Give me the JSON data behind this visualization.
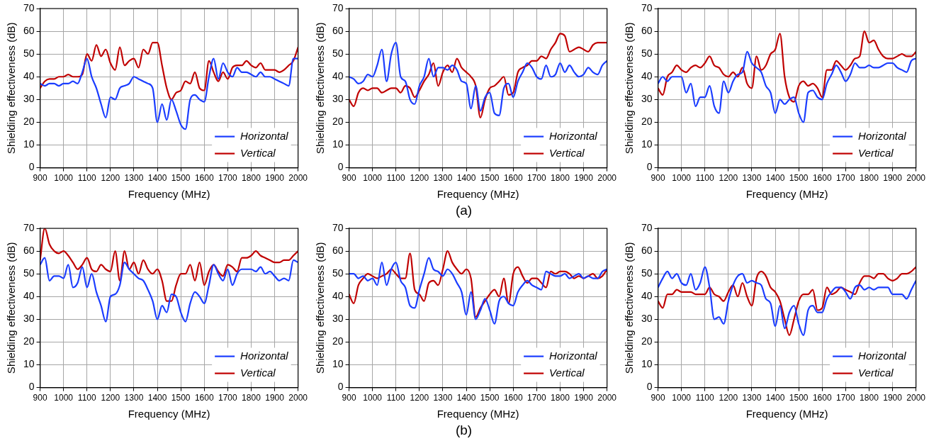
{
  "chart_data": [
    {
      "type": "line",
      "xlabel": "Frequency (MHz)",
      "ylabel": "Shielding effectiveness (dB)",
      "xlim": [
        900,
        2000
      ],
      "xticks": [
        900,
        1000,
        1100,
        1200,
        1300,
        1400,
        1500,
        1600,
        1700,
        1800,
        1900,
        2000
      ],
      "ylim": [
        0,
        70
      ],
      "yticks": [
        0,
        10,
        20,
        30,
        40,
        50,
        60,
        70
      ],
      "grid": true,
      "legend": "bottom right",
      "x": [
        900,
        920,
        940,
        960,
        980,
        1000,
        1020,
        1040,
        1060,
        1080,
        1100,
        1120,
        1140,
        1160,
        1180,
        1200,
        1220,
        1240,
        1260,
        1280,
        1300,
        1320,
        1340,
        1360,
        1380,
        1400,
        1420,
        1440,
        1460,
        1480,
        1500,
        1520,
        1540,
        1560,
        1580,
        1600,
        1620,
        1640,
        1660,
        1680,
        1700,
        1720,
        1740,
        1760,
        1780,
        1800,
        1820,
        1840,
        1860,
        1880,
        1900,
        1920,
        1940,
        1960,
        1980,
        2000
      ],
      "series": [
        {
          "name": "Horizontal",
          "color": "#1a3cff",
          "values": [
            37,
            36,
            37,
            37,
            36,
            37,
            37,
            38,
            37,
            42,
            48,
            40,
            35,
            28,
            22,
            31,
            30,
            35,
            36,
            37,
            40,
            39,
            38,
            37,
            35,
            20,
            28,
            21,
            30,
            25,
            19,
            17,
            30,
            32,
            30,
            29,
            40,
            48,
            39,
            46,
            42,
            40,
            44,
            42,
            42,
            41,
            40,
            42,
            40,
            40,
            39,
            38,
            37,
            36,
            48,
            48
          ]
        },
        {
          "name": "Vertical",
          "color": "#c00000",
          "values": [
            35,
            38,
            39,
            39,
            40,
            40,
            41,
            40,
            40,
            41,
            50,
            47,
            54,
            49,
            52,
            46,
            43,
            53,
            45,
            47,
            48,
            44,
            52,
            50,
            55,
            55,
            45,
            35,
            30,
            33,
            34,
            38,
            37,
            42,
            35,
            34,
            47,
            42,
            38,
            42,
            39,
            44,
            45,
            45,
            47,
            45,
            44,
            46,
            43,
            43,
            43,
            42,
            43,
            45,
            47,
            53
          ]
        }
      ]
    },
    {
      "type": "line",
      "xlabel": "Frequency (MHz)",
      "ylabel": "Shielding effectiveness (dB)",
      "xlim": [
        900,
        2000
      ],
      "xticks": [
        900,
        1000,
        1100,
        1200,
        1300,
        1400,
        1500,
        1600,
        1700,
        1800,
        1900,
        2000
      ],
      "ylim": [
        0,
        70
      ],
      "yticks": [
        0,
        10,
        20,
        30,
        40,
        50,
        60,
        70
      ],
      "grid": true,
      "legend": "bottom right",
      "annotations": [
        "(a)"
      ],
      "x": [
        900,
        920,
        940,
        960,
        980,
        1000,
        1020,
        1040,
        1060,
        1080,
        1100,
        1120,
        1140,
        1160,
        1180,
        1200,
        1220,
        1240,
        1260,
        1280,
        1300,
        1320,
        1340,
        1360,
        1380,
        1400,
        1420,
        1440,
        1460,
        1480,
        1500,
        1520,
        1540,
        1560,
        1580,
        1600,
        1620,
        1640,
        1660,
        1680,
        1700,
        1720,
        1740,
        1760,
        1780,
        1800,
        1820,
        1840,
        1860,
        1880,
        1900,
        1920,
        1940,
        1960,
        1980,
        2000
      ],
      "series": [
        {
          "name": "Horizontal",
          "color": "#1a3cff",
          "values": [
            40,
            39,
            37,
            38,
            41,
            40,
            45,
            52,
            38,
            50,
            55,
            40,
            38,
            30,
            28,
            36,
            40,
            48,
            40,
            44,
            44,
            43,
            45,
            43,
            38,
            37,
            26,
            36,
            25,
            31,
            33,
            24,
            23,
            35,
            37,
            31,
            38,
            42,
            46,
            44,
            40,
            39,
            45,
            40,
            41,
            46,
            42,
            45,
            42,
            40,
            41,
            44,
            42,
            41,
            45,
            47
          ]
        },
        {
          "name": "Vertical",
          "color": "#c00000",
          "values": [
            30,
            27,
            33,
            35,
            34,
            35,
            35,
            33,
            34,
            35,
            35,
            33,
            36,
            35,
            31,
            34,
            38,
            41,
            46,
            36,
            42,
            45,
            42,
            48,
            44,
            42,
            40,
            36,
            22,
            30,
            35,
            36,
            38,
            40,
            32,
            33,
            42,
            44,
            45,
            47,
            47,
            49,
            48,
            52,
            55,
            59,
            58,
            51,
            52,
            53,
            52,
            51,
            54,
            55,
            55,
            55
          ]
        }
      ]
    },
    {
      "type": "line",
      "xlabel": "Frequency (MHz)",
      "ylabel": "Shielding effectiveness (dB)",
      "xlim": [
        900,
        2000
      ],
      "xticks": [
        900,
        1000,
        1100,
        1200,
        1300,
        1400,
        1500,
        1600,
        1700,
        1800,
        1900,
        2000
      ],
      "ylim": [
        0,
        70
      ],
      "yticks": [
        0,
        10,
        20,
        30,
        40,
        50,
        60,
        70
      ],
      "grid": true,
      "legend": "bottom right",
      "x": [
        900,
        920,
        940,
        960,
        980,
        1000,
        1020,
        1040,
        1060,
        1080,
        1100,
        1120,
        1140,
        1160,
        1180,
        1200,
        1220,
        1240,
        1260,
        1280,
        1300,
        1320,
        1340,
        1360,
        1380,
        1400,
        1420,
        1440,
        1460,
        1480,
        1500,
        1520,
        1540,
        1560,
        1580,
        1600,
        1620,
        1640,
        1660,
        1680,
        1700,
        1720,
        1740,
        1760,
        1780,
        1800,
        1820,
        1840,
        1860,
        1880,
        1900,
        1920,
        1940,
        1960,
        1980,
        2000
      ],
      "series": [
        {
          "name": "Horizontal",
          "color": "#1a3cff",
          "values": [
            37,
            40,
            38,
            40,
            40,
            40,
            33,
            37,
            27,
            31,
            31,
            36,
            27,
            24,
            38,
            33,
            38,
            41,
            42,
            51,
            46,
            44,
            42,
            36,
            33,
            24,
            30,
            28,
            30,
            31,
            24,
            20,
            33,
            34,
            31,
            30,
            37,
            41,
            45,
            42,
            38,
            41,
            46,
            44,
            44,
            45,
            44,
            44,
            45,
            46,
            46,
            44,
            43,
            42,
            47,
            48
          ]
        },
        {
          "name": "Vertical",
          "color": "#c00000",
          "values": [
            35,
            32,
            40,
            42,
            45,
            43,
            42,
            44,
            45,
            44,
            46,
            49,
            45,
            44,
            41,
            40,
            42,
            40,
            44,
            37,
            35,
            49,
            43,
            45,
            50,
            52,
            59,
            40,
            31,
            29,
            36,
            38,
            36,
            37,
            35,
            31,
            43,
            43,
            47,
            45,
            43,
            45,
            48,
            49,
            60,
            55,
            56,
            52,
            49,
            48,
            48,
            49,
            50,
            49,
            49,
            51
          ]
        }
      ]
    },
    {
      "type": "line",
      "xlabel": "Frequency (MHz)",
      "ylabel": "Shielding effectiveness (dB)",
      "xlim": [
        900,
        2000
      ],
      "xticks": [
        900,
        1000,
        1100,
        1200,
        1300,
        1400,
        1500,
        1600,
        1700,
        1800,
        1900,
        2000
      ],
      "ylim": [
        0,
        70
      ],
      "yticks": [
        0,
        10,
        20,
        30,
        40,
        50,
        60,
        70
      ],
      "grid": true,
      "legend": "bottom right",
      "x": [
        900,
        920,
        940,
        960,
        980,
        1000,
        1020,
        1040,
        1060,
        1080,
        1100,
        1120,
        1140,
        1160,
        1180,
        1200,
        1220,
        1240,
        1260,
        1280,
        1300,
        1320,
        1340,
        1360,
        1380,
        1400,
        1420,
        1440,
        1460,
        1480,
        1500,
        1520,
        1540,
        1560,
        1580,
        1600,
        1620,
        1640,
        1660,
        1680,
        1700,
        1720,
        1740,
        1760,
        1780,
        1800,
        1820,
        1840,
        1860,
        1880,
        1900,
        1920,
        1940,
        1960,
        1980,
        2000
      ],
      "series": [
        {
          "name": "Horizontal",
          "color": "#1a3cff",
          "values": [
            54,
            57,
            47,
            49,
            49,
            48,
            54,
            44,
            46,
            53,
            44,
            50,
            42,
            36,
            29,
            40,
            41,
            45,
            55,
            52,
            50,
            48,
            47,
            43,
            38,
            30,
            36,
            33,
            41,
            40,
            33,
            29,
            37,
            42,
            40,
            37,
            45,
            54,
            50,
            47,
            52,
            45,
            50,
            52,
            52,
            52,
            51,
            53,
            50,
            51,
            49,
            47,
            48,
            47,
            56,
            55
          ]
        },
        {
          "name": "Vertical",
          "color": "#c00000",
          "values": [
            56,
            70,
            63,
            60,
            59,
            60,
            58,
            55,
            52,
            54,
            57,
            52,
            51,
            54,
            52,
            51,
            60,
            47,
            60,
            52,
            55,
            50,
            56,
            52,
            50,
            52,
            47,
            38,
            38,
            45,
            50,
            50,
            54,
            47,
            55,
            45,
            51,
            54,
            51,
            49,
            54,
            53,
            51,
            57,
            57,
            58,
            60,
            58,
            57,
            56,
            55,
            55,
            56,
            56,
            58,
            60
          ]
        }
      ]
    },
    {
      "type": "line",
      "xlabel": "Frequency (MHz)",
      "ylabel": "Shielding effectiveness (dB)",
      "xlim": [
        900,
        2000
      ],
      "xticks": [
        900,
        1000,
        1100,
        1200,
        1300,
        1400,
        1500,
        1600,
        1700,
        1800,
        1900,
        2000
      ],
      "ylim": [
        0,
        70
      ],
      "yticks": [
        0,
        10,
        20,
        30,
        40,
        50,
        60,
        70
      ],
      "grid": true,
      "legend": "bottom right",
      "annotations": [
        "(b)"
      ],
      "x": [
        900,
        920,
        940,
        960,
        980,
        1000,
        1020,
        1040,
        1060,
        1080,
        1100,
        1120,
        1140,
        1160,
        1180,
        1200,
        1220,
        1240,
        1260,
        1280,
        1300,
        1320,
        1340,
        1360,
        1380,
        1400,
        1420,
        1440,
        1460,
        1480,
        1500,
        1520,
        1540,
        1560,
        1580,
        1600,
        1620,
        1640,
        1660,
        1680,
        1700,
        1720,
        1740,
        1760,
        1780,
        1800,
        1820,
        1840,
        1860,
        1880,
        1900,
        1920,
        1940,
        1960,
        1980,
        2000
      ],
      "series": [
        {
          "name": "Horizontal",
          "color": "#1a3cff",
          "values": [
            50,
            50,
            48,
            49,
            47,
            48,
            45,
            55,
            45,
            52,
            55,
            47,
            44,
            36,
            35,
            43,
            50,
            57,
            52,
            51,
            49,
            52,
            50,
            46,
            42,
            32,
            42,
            30,
            34,
            39,
            34,
            28,
            38,
            40,
            37,
            36,
            42,
            45,
            47,
            45,
            44,
            43,
            51,
            50,
            49,
            49,
            50,
            48,
            49,
            50,
            48,
            49,
            48,
            48,
            51,
            52
          ]
        },
        {
          "name": "Vertical",
          "color": "#c00000",
          "values": [
            41,
            37,
            45,
            48,
            50,
            49,
            48,
            49,
            50,
            52,
            50,
            48,
            48,
            59,
            43,
            41,
            38,
            46,
            47,
            45,
            52,
            60,
            55,
            52,
            50,
            52,
            48,
            31,
            35,
            38,
            41,
            43,
            40,
            48,
            37,
            50,
            53,
            49,
            46,
            48,
            48,
            46,
            44,
            51,
            50,
            51,
            51,
            50,
            48,
            49,
            48,
            49,
            50,
            48,
            49,
            52
          ]
        }
      ]
    },
    {
      "type": "line",
      "xlabel": "Frequency (MHz)",
      "ylabel": "Shielding effectiveness (dB)",
      "xlim": [
        900,
        2000
      ],
      "xticks": [
        900,
        1000,
        1100,
        1200,
        1300,
        1400,
        1500,
        1600,
        1700,
        1800,
        1900,
        2000
      ],
      "ylim": [
        0,
        70
      ],
      "yticks": [
        0,
        10,
        20,
        30,
        40,
        50,
        60,
        70
      ],
      "grid": true,
      "legend": "bottom right",
      "x": [
        900,
        920,
        940,
        960,
        980,
        1000,
        1020,
        1040,
        1060,
        1080,
        1100,
        1120,
        1140,
        1160,
        1180,
        1200,
        1220,
        1240,
        1260,
        1280,
        1300,
        1320,
        1340,
        1360,
        1380,
        1400,
        1420,
        1440,
        1460,
        1480,
        1500,
        1520,
        1540,
        1560,
        1580,
        1600,
        1620,
        1640,
        1660,
        1680,
        1700,
        1720,
        1740,
        1760,
        1780,
        1800,
        1820,
        1840,
        1860,
        1880,
        1900,
        1920,
        1940,
        1960,
        1980,
        2000
      ],
      "series": [
        {
          "name": "Horizontal",
          "color": "#1a3cff",
          "values": [
            44,
            48,
            51,
            48,
            50,
            46,
            45,
            50,
            43,
            46,
            53,
            44,
            30,
            31,
            28,
            38,
            45,
            49,
            50,
            46,
            47,
            46,
            45,
            39,
            37,
            27,
            36,
            26,
            33,
            36,
            28,
            23,
            34,
            36,
            33,
            33,
            39,
            42,
            44,
            44,
            42,
            39,
            44,
            45,
            43,
            44,
            43,
            44,
            44,
            44,
            41,
            41,
            41,
            39,
            43,
            47
          ]
        },
        {
          "name": "Vertical",
          "color": "#c00000",
          "values": [
            38,
            35,
            41,
            41,
            43,
            42,
            42,
            42,
            41,
            41,
            41,
            44,
            41,
            40,
            38,
            42,
            45,
            40,
            46,
            40,
            36,
            48,
            51,
            49,
            44,
            42,
            38,
            30,
            23,
            30,
            38,
            41,
            41,
            43,
            34,
            35,
            44,
            41,
            42,
            44,
            43,
            42,
            41,
            46,
            49,
            49,
            48,
            50,
            50,
            48,
            47,
            48,
            50,
            50,
            51,
            53
          ]
        }
      ]
    }
  ]
}
